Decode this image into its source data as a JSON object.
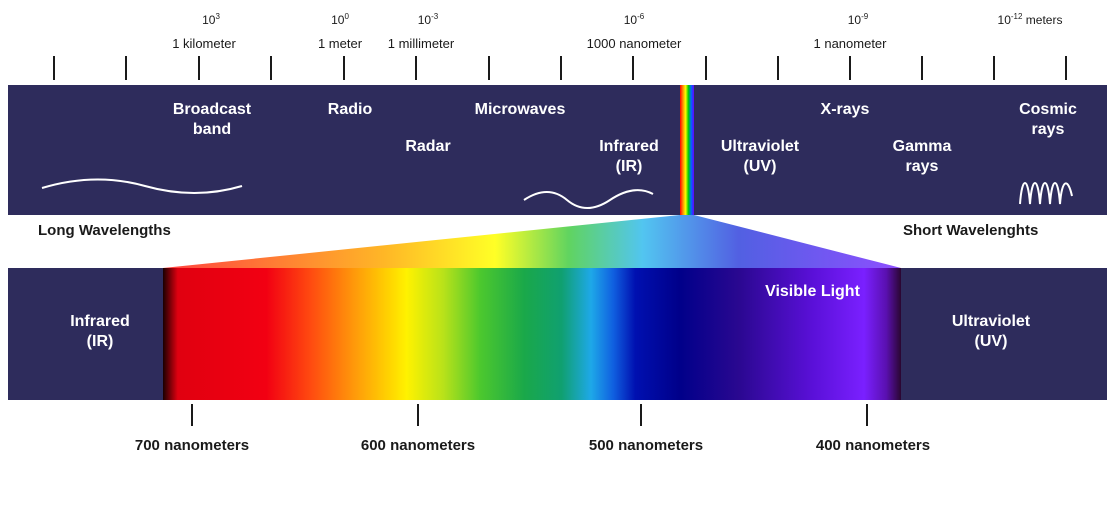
{
  "top_scale": {
    "exponents": [
      {
        "base": "10",
        "exp": "3"
      },
      {
        "base": "10",
        "exp": "0"
      },
      {
        "base": "10",
        "exp": "-3"
      },
      {
        "base": "10",
        "exp": "-6"
      },
      {
        "base": "10",
        "exp": "-9"
      },
      {
        "base": "10",
        "exp": "-12",
        "suffix": " meters"
      }
    ],
    "names": [
      "1 kilometer",
      "1 meter",
      "1 millimeter",
      "1000 nanometer",
      "1 nanometer"
    ]
  },
  "bands": {
    "broadcast": "Broadcast\nband",
    "radio": "Radio",
    "microwaves": "Microwaves",
    "radar": "Radar",
    "infrared": "Infrared\n(IR)",
    "ultraviolet": "Ultraviolet\n(UV)",
    "xrays": "X-rays",
    "gamma": "Gamma\nrays",
    "cosmic": "Cosmic\nrays"
  },
  "side_labels": {
    "long": "Long Wavelengths",
    "short": "Short Wavelenghts"
  },
  "visible": {
    "title": "Visible Light",
    "infrared": "Infrared\n(IR)",
    "ultraviolet": "Ultraviolet\n(UV)"
  },
  "nm_labels": [
    "700 nanometers",
    "600 nanometers",
    "500 nanometers",
    "400 nanometers"
  ],
  "colors": {
    "band": "#2e2c5c",
    "text_dark": "#1a1a1a",
    "text_light": "#ffffff"
  }
}
